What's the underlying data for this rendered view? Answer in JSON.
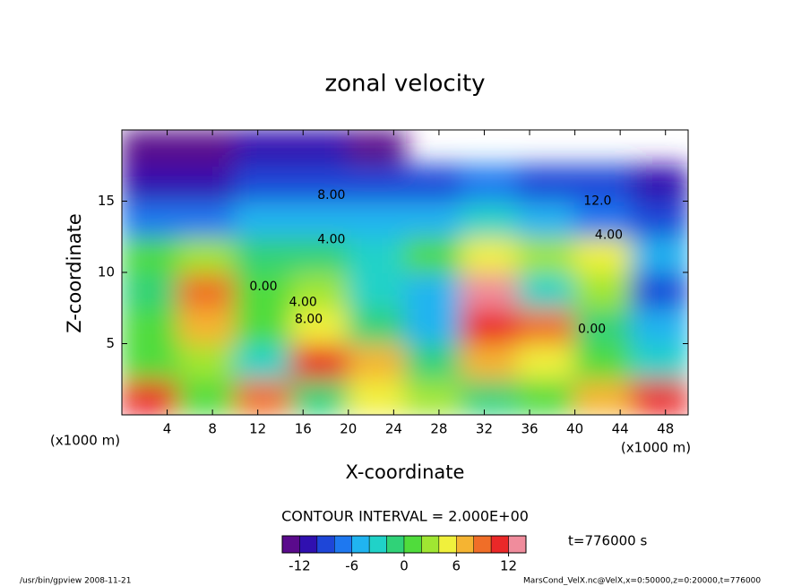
{
  "chart_data": {
    "type": "contour",
    "title": "zonal velocity",
    "x_label": "X-coordinate",
    "y_label": "Z-coordinate",
    "x_unit": "(x1000 m)",
    "y_unit": "(x1000 m)",
    "xlim": [
      0,
      50
    ],
    "ylim": [
      0,
      20
    ],
    "xticks": [
      4,
      8,
      12,
      16,
      20,
      24,
      28,
      32,
      36,
      40,
      44,
      48
    ],
    "yticks": [
      5,
      10,
      15
    ],
    "x": [
      2.5,
      7.5,
      12.5,
      17.5,
      22.5,
      27.5,
      32.5,
      37.5,
      42.5,
      47.5
    ],
    "y": [
      1.25,
      3.75,
      6.25,
      8.75,
      11.25,
      13.75,
      16.25,
      18.75
    ],
    "z": [
      [
        10,
        1,
        8,
        -2,
        4,
        2,
        -2,
        1,
        6,
        10
      ],
      [
        1,
        2,
        -3,
        10,
        6,
        -2,
        6,
        4,
        0,
        -4
      ],
      [
        0,
        6,
        1,
        4,
        -1,
        -5,
        10,
        8,
        -2,
        -6
      ],
      [
        -2,
        8,
        0,
        2,
        -3,
        -6,
        12,
        -4,
        2,
        -10
      ],
      [
        0,
        2,
        -1,
        -2,
        -4,
        0,
        4,
        2,
        4,
        -5
      ],
      [
        -7,
        -8,
        -6,
        -5,
        -6,
        -5,
        -4,
        -6,
        -7,
        -9
      ],
      [
        -12,
        -11,
        -9,
        -10,
        -9,
        -10,
        -8,
        -9,
        -10,
        -12
      ],
      [
        -13,
        -13,
        -12,
        -11,
        -13,
        null,
        null,
        null,
        null,
        null
      ]
    ],
    "levels": [
      -14,
      -12,
      -10,
      -8,
      -6,
      -4,
      -2,
      0,
      2,
      4,
      6,
      8,
      10,
      12,
      14
    ],
    "colors": [
      "#5a0a8c",
      "#3010b0",
      "#1e46d8",
      "#1e78f0",
      "#20b4f0",
      "#20d2c8",
      "#30d278",
      "#50dc3c",
      "#a0e632",
      "#f0f03c",
      "#f5b432",
      "#f06e28",
      "#eb2828",
      "#f08c9c"
    ],
    "cbar_ticks": [
      -12,
      -6,
      0,
      6,
      12
    ],
    "contour_labels": [
      {
        "text": "0.00",
        "x": 12.5,
        "y": 9
      },
      {
        "text": "4.00",
        "x": 16,
        "y": 7.9
      },
      {
        "text": "8.00",
        "x": 16.5,
        "y": 6.7
      },
      {
        "text": "8.00",
        "x": 18.5,
        "y": 15.4
      },
      {
        "text": "4.00",
        "x": 18.5,
        "y": 12.3
      },
      {
        "text": "12.0",
        "x": 42,
        "y": 15
      },
      {
        "text": "4.00",
        "x": 43,
        "y": 12.6
      },
      {
        "text": "0.00",
        "x": 41.5,
        "y": 6
      }
    ],
    "contour_interval": "CONTOUR INTERVAL = 2.000E+00",
    "time": "t=776000 s",
    "footer_left": "/usr/bin/gpview   2008-11-21",
    "footer_right": "MarsCond_VelX.nc@VelX,x=0:50000,z=0:20000,t=776000"
  }
}
